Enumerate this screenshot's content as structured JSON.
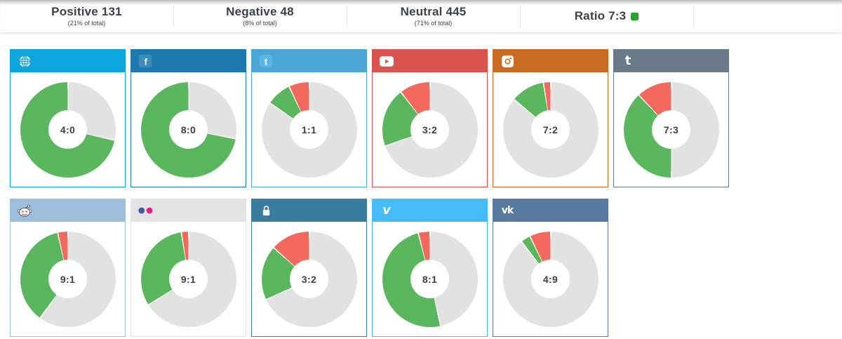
{
  "summary_bar": {
    "items": [
      {
        "label": "Positive 131",
        "sub": "(21% of total)"
      },
      {
        "label": "Negative 48",
        "sub": "(8% of total)"
      },
      {
        "label": "Neutral 445",
        "sub": "(71% of total)"
      },
      {
        "label": "Ratio 7:3",
        "sub": "",
        "swatch_color": "#26a826"
      }
    ]
  },
  "colors": {
    "positive": "#5bb75d",
    "negative": "#f4695e",
    "neutral": "#e2e2e2",
    "label_text": "#3b4149"
  },
  "chart_data": {
    "type": "pie",
    "subtype": "donut-grid",
    "description": "Sentiment ratio (positive:negative) per source. Slices are percent of mentions drawn clockwise from 12 o'clock in order: neutral (gray), positive (green), negative (red).",
    "platforms": [
      {
        "name": "web",
        "icon": "globe-icon",
        "header_color": "#0da5dd",
        "ratio": "4:0",
        "neutral": 28.5,
        "positive": 71.5,
        "negative": 0
      },
      {
        "name": "facebook",
        "icon": "facebook-icon",
        "header_color": "#1d78ae",
        "ratio": "8:0",
        "neutral": 28.0,
        "positive": 72.0,
        "negative": 0
      },
      {
        "name": "twitter",
        "icon": "twitter-icon",
        "header_color": "#4ba5d5",
        "ratio": "1:1",
        "neutral": 84.5,
        "positive": 8.5,
        "negative": 7.0
      },
      {
        "name": "youtube",
        "icon": "youtube-icon",
        "header_color": "#d9534f",
        "ratio": "3:2",
        "neutral": 69.5,
        "positive": 20.0,
        "negative": 10.5
      },
      {
        "name": "instagram",
        "icon": "instagram-icon",
        "header_color": "#c96b22",
        "ratio": "7:2",
        "neutral": 86.0,
        "positive": 11.5,
        "negative": 2.5
      },
      {
        "name": "tumblr",
        "icon": "tumblr-icon",
        "header_color": "#6b7a88",
        "ratio": "7:3",
        "neutral": 50.0,
        "positive": 38.0,
        "negative": 12.0
      },
      {
        "name": "reddit",
        "icon": "reddit-icon",
        "header_color": "#9dbfdd",
        "ratio": "9:1",
        "neutral": 60.0,
        "positive": 36.5,
        "negative": 3.5
      },
      {
        "name": "flickr",
        "icon": "flickr-icon",
        "header_color": "#e4e4e4",
        "ratio": "9:1",
        "neutral": 66.0,
        "positive": 31.5,
        "negative": 2.5
      },
      {
        "name": "private",
        "icon": "lock-icon",
        "header_color": "#3a7c9f",
        "ratio": "3:2",
        "neutral": 68.0,
        "positive": 18.5,
        "negative": 13.5
      },
      {
        "name": "vimeo",
        "icon": "vimeo-icon",
        "header_color": "#45bbf8",
        "ratio": "8:1",
        "neutral": 46.5,
        "positive": 49.5,
        "negative": 4.0
      },
      {
        "name": "vk",
        "icon": "vk-icon",
        "header_color": "#567a9f",
        "ratio": "4:9",
        "neutral": 89.5,
        "positive": 3.3,
        "negative": 7.2
      }
    ]
  }
}
